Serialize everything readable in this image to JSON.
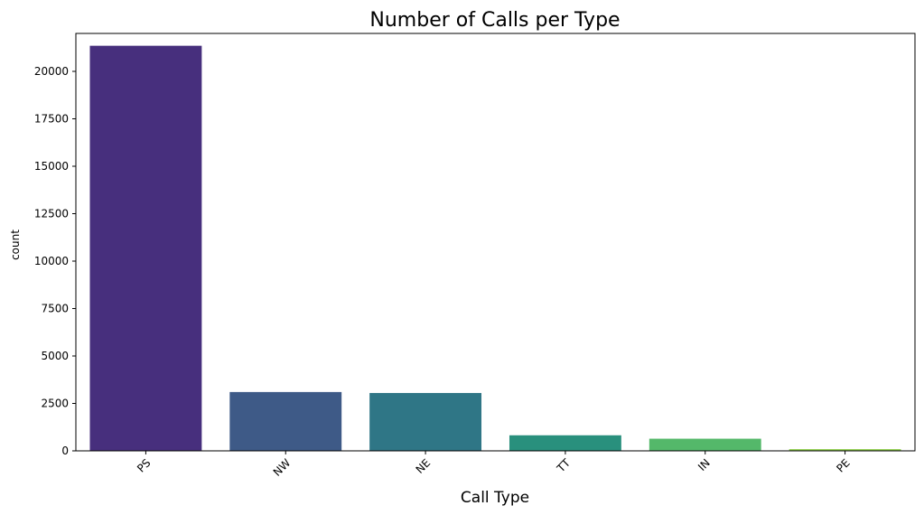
{
  "chart_data": {
    "type": "bar",
    "title": "Number of Calls per Type",
    "xlabel": "Call Type",
    "ylabel": "count",
    "categories": [
      "PS",
      "NW",
      "NE",
      "TT",
      "IN",
      "PE"
    ],
    "values": [
      21350,
      3100,
      3050,
      820,
      640,
      90
    ],
    "colors": [
      "#472f7d",
      "#3e5a87",
      "#2f7686",
      "#29907d",
      "#54b86a",
      "#8fd24a"
    ],
    "ylim": [
      0,
      22000
    ],
    "yticks": [
      0,
      2500,
      5000,
      7500,
      10000,
      12500,
      15000,
      17500,
      20000
    ],
    "ytick_labels": [
      "0",
      "2500",
      "5000",
      "7500",
      "10000",
      "12500",
      "15000",
      "17500",
      "20000"
    ],
    "grid": false,
    "xtick_rotation": 45
  }
}
